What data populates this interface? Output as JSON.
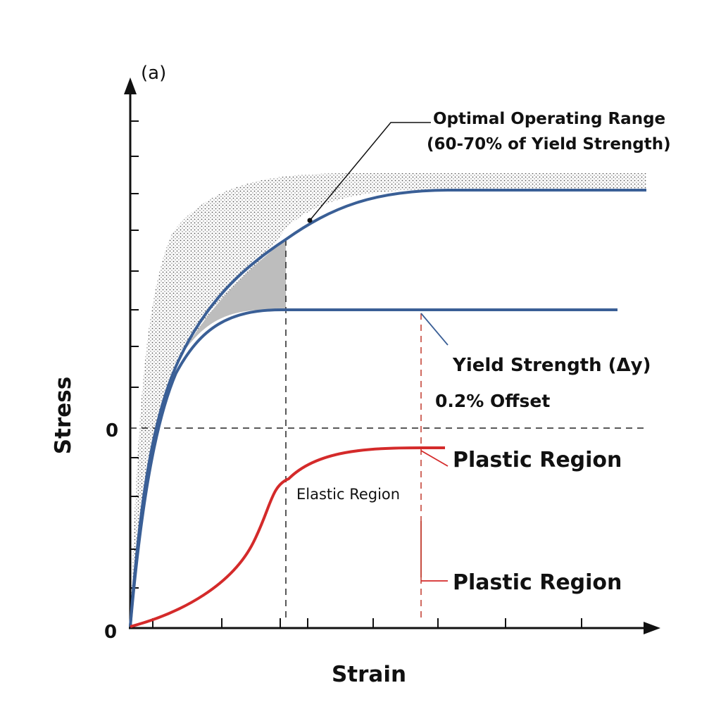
{
  "chart_data": {
    "type": "line",
    "panel_label": "(a)",
    "xlabel": "Strain",
    "ylabel": "Stress",
    "x_origin_label": "0",
    "y_origin_label": "0",
    "y_mid_zero_label": "0",
    "grid": false,
    "annotations": {
      "optimal_range": [
        "Optimal Operating Range",
        "(60-70% of Yield Strength)"
      ],
      "yield_strength": "Yield Strength (Δy)",
      "offset": "0.2% Offset",
      "plastic_region_1": "Plastic Region",
      "elastic_region": "Elastic Region",
      "plastic_region_2": "Plastic Region"
    },
    "series": [
      {
        "color": "#3a5f96",
        "role": "upper stress-strain curve"
      },
      {
        "color": "#3a5f96",
        "role": "yield stress-strain curve"
      },
      {
        "color": "#d42a2a",
        "role": "lower stress-strain curve"
      }
    ],
    "colors": {
      "blue": "#3a5f96",
      "red": "#d42a2a",
      "shaded": "#bdbdbd",
      "stipple": "#555555"
    }
  }
}
